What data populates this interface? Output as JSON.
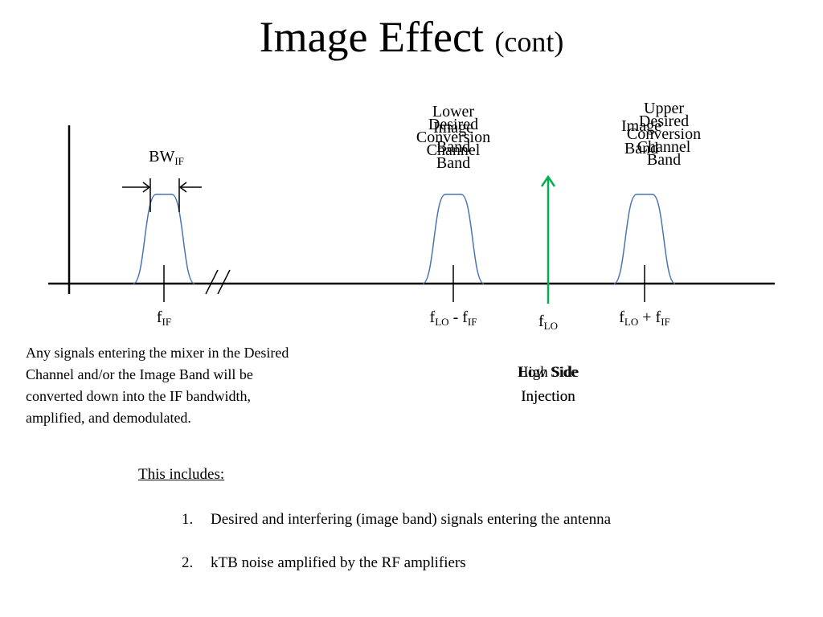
{
  "title": {
    "main": "Image Effect",
    "sub": "(cont)"
  },
  "labels": {
    "bw": "BW",
    "bw_sub": "IF",
    "band1": "Lower\nDesired\nConversion\nChannel\nBand",
    "band1_overlap": "Image\nBand",
    "band2": "Upper\nDesired\nConversion\nChannel\nBand",
    "band2_overlap": "Image\nBand",
    "fif": "f",
    "fif_sub": "IF",
    "flo_minus_main": "f",
    "flo_minus_sub1": "LO",
    "flo_minus_op": " - f",
    "flo_minus_sub2": "IF",
    "flo": "f",
    "flo_sub": "LO",
    "flo_plus_main": "f",
    "flo_plus_sub1": "LO",
    "flo_plus_op": " + f",
    "flo_plus_sub2": "IF",
    "injection_a": "High Side\nInjection",
    "injection_b": "Low Side\nInjection"
  },
  "colors": {
    "passband": "#4a74b4",
    "lo_arrow": "#00b050",
    "axis": "#000000"
  },
  "paragraph": "Any signals entering the mixer in the Desired Channel and/or the Image Band will be converted down into the IF bandwidth, amplified, and demodulated.",
  "includes_heading": "This includes:",
  "list": [
    {
      "num": "1.",
      "text": "Desired and interfering (image band) signals entering the antenna"
    },
    {
      "num": "2.",
      "text": "kTB noise amplified by the RF amplifiers"
    }
  ]
}
